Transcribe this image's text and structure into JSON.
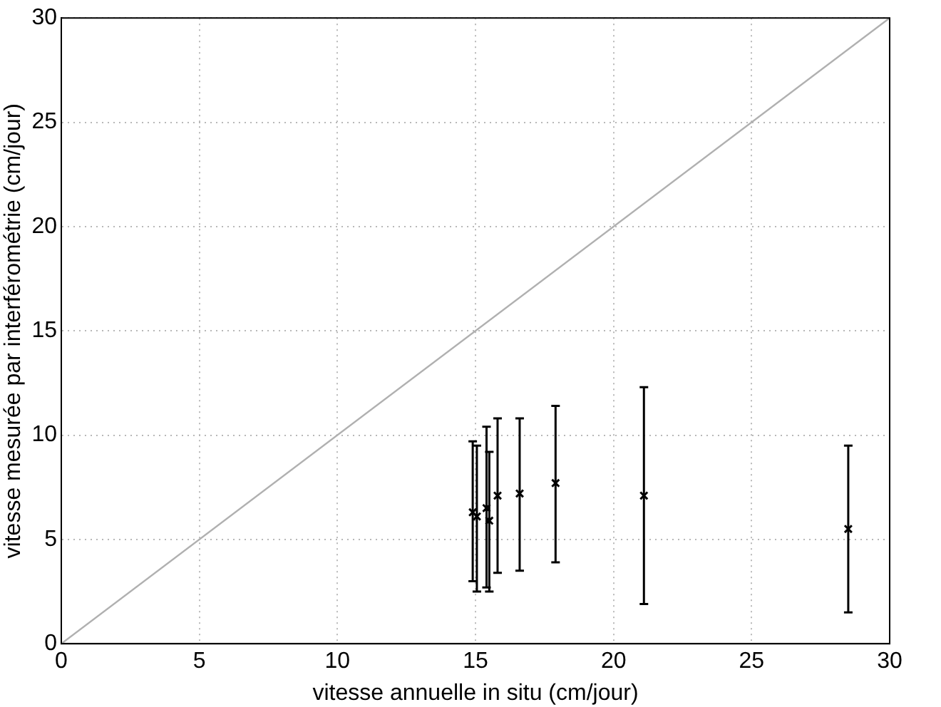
{
  "chart_data": {
    "type": "scatter",
    "xlabel": "vitesse annuelle in situ (cm/jour)",
    "ylabel": "vitesse mesurée par interférométrie (cm/jour)",
    "xlim": [
      0,
      30
    ],
    "ylim": [
      0,
      30
    ],
    "xticks": [
      0,
      5,
      10,
      15,
      20,
      25,
      30
    ],
    "yticks": [
      0,
      5,
      10,
      15,
      20,
      25,
      30
    ],
    "grid": true,
    "legend": false,
    "series": [
      {
        "color": "#000000",
        "marker": "cross",
        "x": [
          14.9,
          15.05,
          15.4,
          15.5,
          15.8,
          16.6,
          17.9,
          21.1,
          28.5
        ],
        "values": [
          6.3,
          6.1,
          6.5,
          5.9,
          7.1,
          7.2,
          7.7,
          7.1,
          5.5
        ],
        "errors": [
          [
            3.0,
            9.7
          ],
          [
            2.5,
            9.5
          ],
          [
            2.7,
            10.4
          ],
          [
            2.5,
            9.2
          ],
          [
            3.4,
            10.8
          ],
          [
            3.5,
            10.8
          ],
          [
            3.9,
            11.4
          ],
          [
            1.9,
            12.3
          ],
          [
            1.5,
            9.5
          ]
        ]
      },
      {
        "type": "line",
        "color": "#b0b0b0",
        "marker": "none",
        "x": [
          0,
          30
        ],
        "values": [
          0,
          30
        ]
      }
    ]
  }
}
